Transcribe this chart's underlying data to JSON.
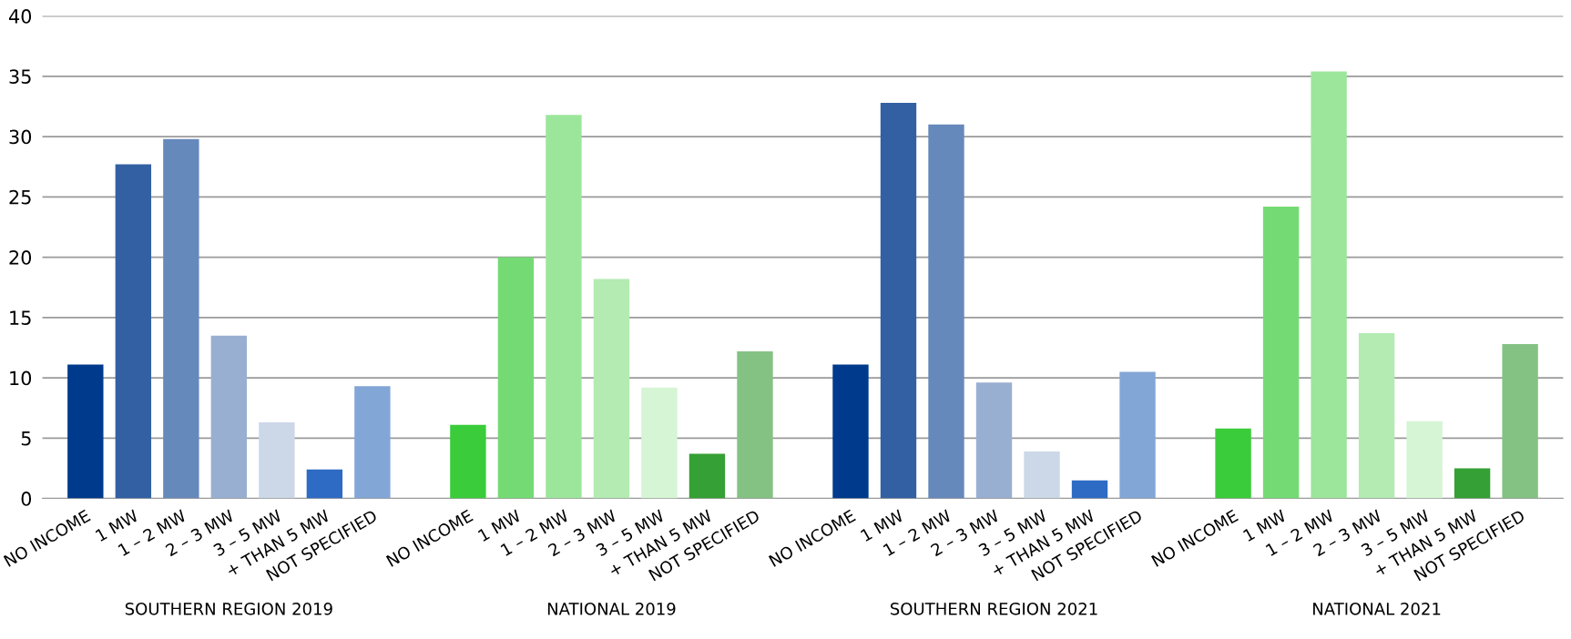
{
  "chart_data": {
    "type": "bar",
    "categories": [
      "NO INCOME",
      "1 MW",
      "1 – 2 MW",
      "2 – 3 MW",
      "3 – 5 MW",
      "+ THAN 5 MW",
      "NOT SPECIFIED",
      null,
      "NO INCOME",
      "1 MW",
      "1 – 2 MW",
      "2 – 3 MW",
      "3 – 5 MW",
      "+ THAN 5 MW",
      "NOT SPECIFIED",
      null,
      "NO INCOME",
      "1 MW",
      "1 – 2 MW",
      "2 – 3 MW",
      "3 – 5 MW",
      "+ THAN 5 MW",
      "NOT SPECIFIED",
      null,
      "NO INCOME",
      "1 MW",
      "1 – 2 MW",
      "2 – 3 MW",
      "3 – 5 MW",
      "+ THAN 5 MW",
      "NOT SPECIFIED"
    ],
    "values": [
      11.1,
      27.7,
      29.8,
      13.5,
      6.3,
      2.4,
      9.3,
      null,
      6.1,
      20.0,
      31.8,
      18.2,
      9.2,
      3.7,
      12.2,
      null,
      11.1,
      32.8,
      31.0,
      9.6,
      3.9,
      1.5,
      10.5,
      null,
      5.8,
      24.2,
      35.4,
      13.7,
      6.4,
      2.5,
      12.8
    ],
    "colors": [
      "#003a8c",
      "#3360a3",
      "#6689bb",
      "#99afd1",
      "#ccd8e8",
      "#2e6bc4",
      "#82a6d6",
      null,
      "#3acc3a",
      "#74db74",
      "#9ce69c",
      "#b3ebb3",
      "#d5f5d5",
      "#35a035",
      "#84c284",
      null,
      "#003a8c",
      "#3360a3",
      "#6689bb",
      "#99afd1",
      "#ccd8e8",
      "#2e6bc4",
      "#82a6d6",
      null,
      "#3acc3a",
      "#74db74",
      "#9ce69c",
      "#b3ebb3",
      "#d5f5d5",
      "#35a035",
      "#84c284"
    ],
    "annotations": [
      "SOUTHERN REGION 2019",
      "NATIONAL 2019",
      "SOUTHERN REGION 2021",
      "NATIONAL 2021"
    ],
    "ylim": [
      0,
      40
    ],
    "yticks": [
      0,
      5,
      10,
      15,
      20,
      25,
      30,
      35,
      40
    ],
    "grid": "y"
  }
}
